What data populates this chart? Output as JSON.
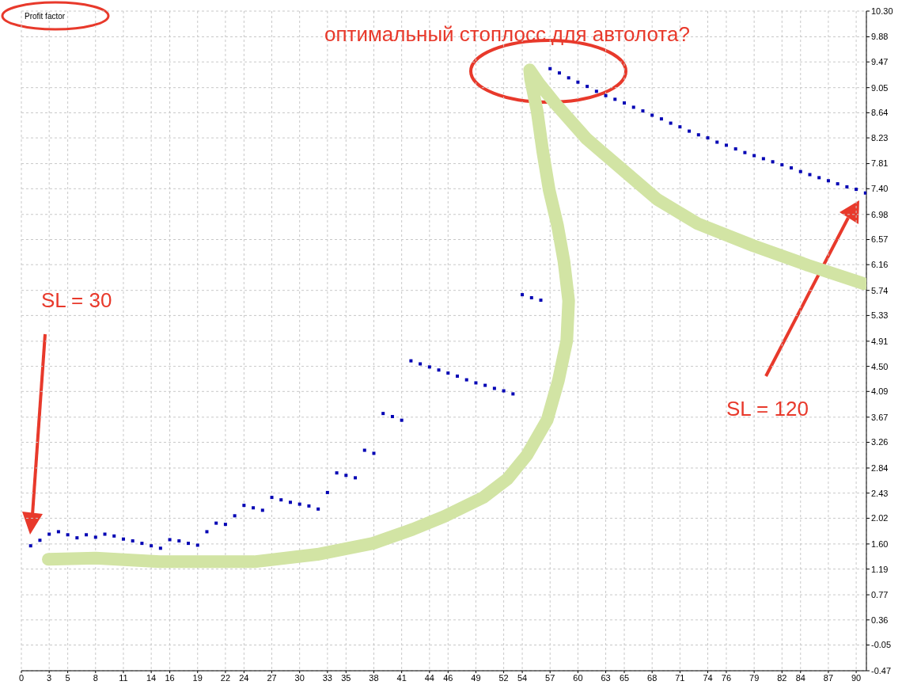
{
  "chart_data": {
    "type": "scatter",
    "title": "Profit factor",
    "annotations": [
      "оптимальный стоплосс для автолота?",
      "SL = 30",
      "SL = 120"
    ],
    "series": [
      {
        "type": "line",
        "marker": "none",
        "color": "#d2e4a4",
        "x": [
          2.9,
          8.0,
          14.9,
          25.1,
          31.9,
          37.9,
          42.2,
          45.6,
          49.8,
          52.4,
          54.5,
          56.7,
          57.9,
          58.8,
          59.0,
          58.5,
          57.8,
          56.9,
          56.2,
          55.6,
          54.9,
          54.8,
          55.8,
          57.5,
          60.9,
          65.2,
          68.6,
          72.9,
          78.9,
          84.8,
          90.8
        ],
        "values": [
          1.35,
          1.37,
          1.31,
          1.31,
          1.43,
          1.61,
          1.84,
          2.05,
          2.36,
          2.66,
          3.05,
          3.63,
          4.27,
          4.92,
          5.57,
          6.21,
          6.8,
          7.38,
          8.02,
          8.67,
          9.19,
          9.34,
          9.12,
          8.8,
          8.22,
          7.66,
          7.22,
          6.83,
          6.47,
          6.15,
          5.85
        ]
      },
      {
        "marker": "square",
        "color": "#0000b4",
        "x": [
          1,
          2,
          3,
          4,
          5,
          6,
          7,
          8,
          9,
          10,
          11,
          12,
          13,
          14,
          15,
          16,
          17,
          18,
          19,
          20,
          21,
          22,
          23,
          24,
          25,
          26,
          27,
          28,
          29,
          30,
          31,
          32,
          33,
          34,
          35,
          36,
          37,
          38,
          39,
          40,
          41,
          42,
          43,
          44,
          45,
          46,
          47,
          48,
          49,
          50,
          51,
          52,
          53,
          54,
          55,
          56,
          57,
          58,
          59,
          60,
          61,
          62,
          63,
          64,
          65,
          66,
          67,
          68,
          69,
          70,
          71,
          72,
          73,
          74,
          75,
          76,
          77,
          78,
          79,
          80,
          81,
          82,
          83,
          84,
          85,
          86,
          87,
          88,
          89,
          90,
          91
        ],
        "values": [
          1.57,
          1.66,
          1.76,
          1.8,
          1.75,
          1.7,
          1.75,
          1.71,
          1.76,
          1.73,
          1.68,
          1.65,
          1.61,
          1.57,
          1.53,
          1.67,
          1.65,
          1.61,
          1.58,
          1.8,
          1.94,
          1.92,
          2.06,
          2.23,
          2.19,
          2.15,
          2.36,
          2.32,
          2.28,
          2.25,
          2.22,
          2.17,
          2.44,
          2.76,
          2.72,
          2.68,
          3.13,
          3.08,
          3.73,
          3.68,
          3.62,
          4.59,
          4.54,
          4.49,
          4.44,
          4.39,
          4.34,
          4.28,
          4.23,
          4.19,
          4.14,
          4.1,
          4.05,
          5.67,
          5.62,
          5.58,
          9.36,
          9.29,
          9.21,
          9.14,
          9.07,
          8.99,
          8.92,
          8.86,
          8.8,
          8.73,
          8.67,
          8.6,
          8.54,
          8.47,
          8.41,
          8.34,
          8.28,
          8.23,
          8.16,
          8.11,
          8.05,
          7.99,
          7.94,
          7.89,
          7.84,
          7.79,
          7.74,
          7.68,
          7.63,
          7.58,
          7.53,
          7.48,
          7.43,
          7.39,
          7.33
        ]
      }
    ],
    "grid": true,
    "xlim": [
      0,
      91.1
    ],
    "xticks": [
      0,
      3,
      5,
      8,
      11,
      14,
      16,
      19,
      22,
      24,
      27,
      30,
      33,
      35,
      38,
      41,
      44,
      46,
      49,
      52,
      54,
      57,
      60,
      63,
      65,
      68,
      71,
      74,
      76,
      79,
      82,
      84,
      87,
      90
    ],
    "ylim": [
      -0.47,
      10.3
    ],
    "yticks": [
      -0.47,
      -0.05,
      0.36,
      0.77,
      1.19,
      {
        "value": 1.6,
        "label": "1.60"
      },
      2.02,
      2.43,
      2.84,
      3.26,
      3.67,
      4.09,
      {
        "value": 4.5,
        "label": "4.50"
      },
      4.91,
      5.33,
      5.74,
      6.16,
      6.57,
      6.98,
      {
        "value": 7.4,
        "label": "7.40"
      },
      7.81,
      8.23,
      8.64,
      9.05,
      9.47,
      9.88,
      {
        "value": 10.3,
        "label": "10.30"
      }
    ]
  }
}
